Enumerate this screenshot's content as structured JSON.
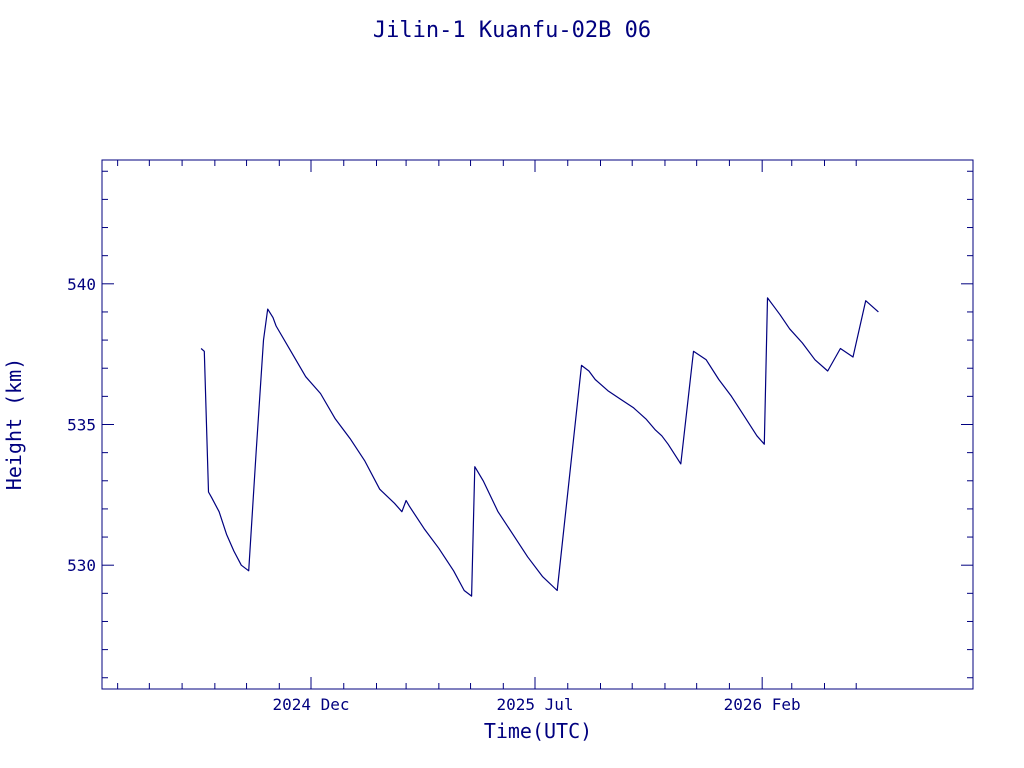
{
  "chart_data": {
    "type": "line",
    "title": "Jilin-1 Kuanfu-02B 06",
    "xlabel": "Time(UTC)",
    "ylabel": "Height (km)",
    "x_tick_labels": [
      "2024 Dec",
      "2025 Jul",
      "2026 Feb"
    ],
    "y_tick_labels": [
      "530",
      "535",
      "540"
    ],
    "y_ticks": [
      530,
      535,
      540
    ],
    "ylim": [
      525.6,
      544.4
    ],
    "grid": false,
    "color": "#00007f",
    "series": [
      {
        "x": [
          "2024-08-19",
          "2024-08-22",
          "2024-08-26",
          "2024-08-29",
          "2024-09-05",
          "2024-09-12",
          "2024-09-19",
          "2024-09-26",
          "2024-10-03",
          "2024-10-10",
          "2024-10-17",
          "2024-10-21",
          "2024-10-26",
          "2024-10-29",
          "2024-11-12",
          "2024-11-26",
          "2024-12-10",
          "2024-12-24",
          "2025-01-07",
          "2025-01-21",
          "2025-02-04",
          "2025-02-18",
          "2025-02-25",
          "2025-03-01",
          "2025-03-04",
          "2025-03-18",
          "2025-04-01",
          "2025-04-15",
          "2025-04-25",
          "2025-05-02",
          "2025-05-05",
          "2025-05-13",
          "2025-05-27",
          "2025-06-10",
          "2025-06-24",
          "2025-07-08",
          "2025-07-22",
          "2025-08-14",
          "2025-08-21",
          "2025-08-27",
          "2025-09-08",
          "2025-09-20",
          "2025-10-02",
          "2025-10-14",
          "2025-10-23",
          "2025-10-29",
          "2025-11-04",
          "2025-11-16",
          "2025-11-28",
          "2025-12-10",
          "2025-12-22",
          "2026-01-03",
          "2026-01-15",
          "2026-01-27",
          "2026-02-03",
          "2026-02-06",
          "2026-02-12",
          "2026-02-18",
          "2026-02-27",
          "2026-03-11",
          "2026-03-23",
          "2026-04-04",
          "2026-04-16",
          "2026-04-28",
          "2026-05-10",
          "2026-05-22"
        ],
        "y": [
          537.7,
          537.6,
          532.6,
          532.4,
          531.9,
          531.1,
          530.5,
          530.0,
          529.8,
          534.0,
          538.0,
          539.1,
          538.8,
          538.5,
          537.6,
          536.7,
          536.1,
          535.2,
          534.5,
          533.7,
          532.7,
          532.2,
          531.9,
          532.3,
          532.1,
          531.3,
          530.6,
          529.8,
          529.1,
          528.9,
          533.5,
          533.0,
          531.9,
          531.1,
          530.3,
          529.6,
          529.1,
          537.1,
          536.9,
          536.6,
          536.2,
          535.9,
          535.6,
          535.2,
          534.8,
          534.6,
          534.3,
          533.6,
          537.6,
          537.3,
          536.6,
          536.0,
          535.3,
          534.6,
          534.3,
          539.5,
          539.2,
          538.9,
          538.4,
          537.9,
          537.3,
          536.9,
          537.7,
          537.4,
          539.4,
          539.0
        ]
      }
    ]
  }
}
